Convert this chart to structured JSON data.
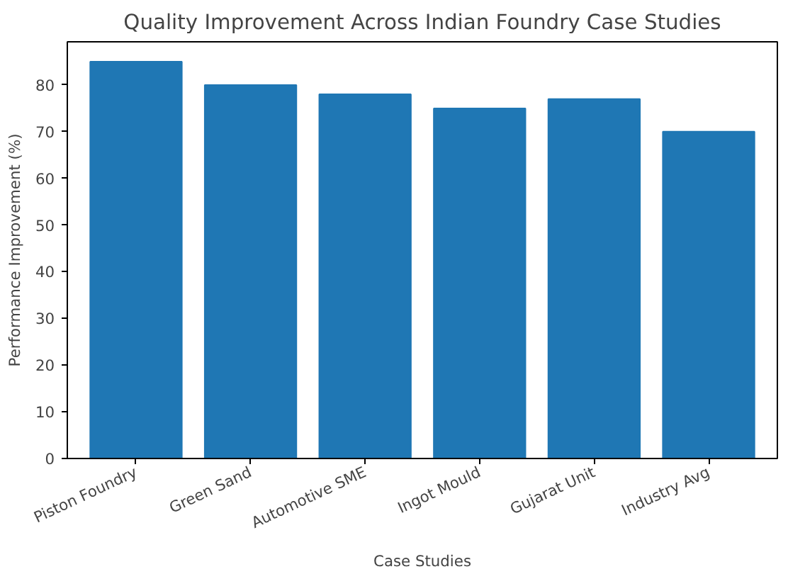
{
  "chart_data": {
    "type": "bar",
    "title": "Quality Improvement Across Indian Foundry Case Studies",
    "xlabel": "Case Studies",
    "ylabel": "Performance Improvement (%)",
    "categories": [
      "Piston Foundry",
      "Green Sand",
      "Automotive SME",
      "Ingot Mould",
      "Gujarat Unit",
      "Industry Avg"
    ],
    "values": [
      85,
      80,
      78,
      75,
      77,
      70
    ],
    "color": "#1f77b4",
    "ylim": [
      0,
      89.25
    ],
    "yticks": [
      0,
      10,
      20,
      30,
      40,
      50,
      60,
      70,
      80
    ],
    "grid": false
  }
}
